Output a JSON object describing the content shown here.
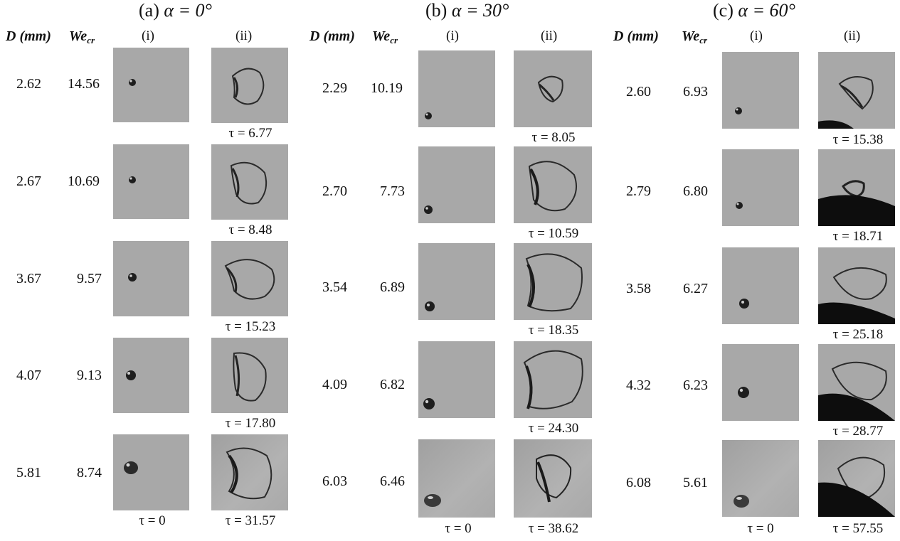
{
  "panels": [
    {
      "title_prefix": "(a) ",
      "title_math": "α = 0°",
      "headers": {
        "d": "D (mm)",
        "we": "We",
        "we_sub": "cr",
        "col_i": "(i)",
        "col_ii": "(ii)"
      },
      "rows": [
        {
          "d": "2.62",
          "we": "14.56",
          "tau": "τ = 6.77"
        },
        {
          "d": "2.67",
          "we": "10.69",
          "tau": "τ = 8.48"
        },
        {
          "d": "3.67",
          "we": "9.57",
          "tau": "τ = 15.23"
        },
        {
          "d": "4.07",
          "we": "9.13",
          "tau": "τ = 17.80"
        },
        {
          "d": "5.81",
          "we": "8.74",
          "tau": "τ = 31.57"
        }
      ],
      "tau_initial": "τ = 0"
    },
    {
      "title_prefix": "(b) ",
      "title_math": "α = 30°",
      "headers": {
        "d": "D (mm)",
        "we": "We",
        "we_sub": "cr",
        "col_i": "(i)",
        "col_ii": "(ii)"
      },
      "rows": [
        {
          "d": "2.29",
          "we": "10.19",
          "tau": "τ = 8.05"
        },
        {
          "d": "2.70",
          "we": "7.73",
          "tau": "τ = 10.59"
        },
        {
          "d": "3.54",
          "we": "6.89",
          "tau": "τ = 18.35"
        },
        {
          "d": "4.09",
          "we": "6.82",
          "tau": "τ = 24.30"
        },
        {
          "d": "6.03",
          "we": "6.46",
          "tau": "τ = 38.62"
        }
      ],
      "tau_initial": "τ = 0"
    },
    {
      "title_prefix": "(c) ",
      "title_math": "α = 60°",
      "headers": {
        "d": "D (mm)",
        "we": "We",
        "we_sub": "cr",
        "col_i": "(i)",
        "col_ii": "(ii)"
      },
      "rows": [
        {
          "d": "2.60",
          "we": "6.93",
          "tau": "τ = 15.38"
        },
        {
          "d": "2.79",
          "we": "6.80",
          "tau": "τ = 18.71"
        },
        {
          "d": "3.58",
          "we": "6.27",
          "tau": "τ = 25.18"
        },
        {
          "d": "4.32",
          "we": "6.23",
          "tau": "τ = 28.77"
        },
        {
          "d": "6.08",
          "we": "5.61",
          "tau": "τ = 57.55"
        }
      ],
      "tau_initial": "τ = 0"
    }
  ]
}
